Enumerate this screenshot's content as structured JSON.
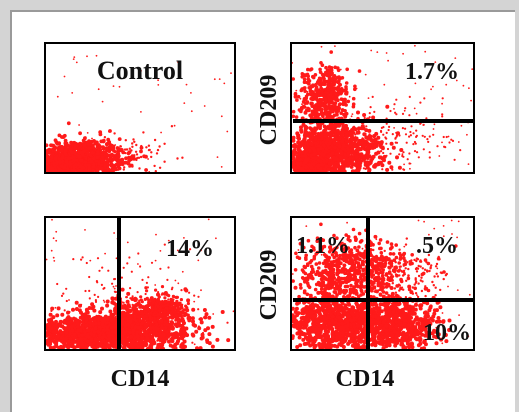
{
  "colors": {
    "events": "#ff1a1a",
    "gate": "#000000",
    "panel_border": "#000000",
    "background": "#ffffff",
    "frame": "#d4d4d4"
  },
  "chart_data": [
    {
      "type": "scatter",
      "panel": "top-left",
      "title": "Control",
      "xlabel": "",
      "ylabel": "",
      "quadrant_gates": false,
      "annotations": [],
      "dominant_population": "low/low (bottom-left)"
    },
    {
      "type": "scatter",
      "panel": "top-right",
      "title": "",
      "xlabel": "",
      "ylabel": "CD209",
      "horizontal_gate": true,
      "vertical_gate": false,
      "annotations": [
        {
          "text": "1.7%",
          "region": "upper-right"
        }
      ],
      "dominant_population": "low CD14, bimodal CD209"
    },
    {
      "type": "scatter",
      "panel": "bottom-left",
      "title": "",
      "xlabel": "CD14",
      "ylabel": "",
      "horizontal_gate": false,
      "vertical_gate": true,
      "annotations": [
        {
          "text": "14%",
          "region": "upper-right"
        }
      ],
      "dominant_population": "broad CD14 spread at low y"
    },
    {
      "type": "scatter",
      "panel": "bottom-right",
      "title": "",
      "xlabel": "CD14",
      "ylabel": "CD209",
      "horizontal_gate": true,
      "vertical_gate": true,
      "annotations": [
        {
          "text": "1.1%",
          "region": "upper-left"
        },
        {
          "text": ".5%",
          "region": "upper-right"
        },
        {
          "text": "10%",
          "region": "lower-right"
        }
      ],
      "dominant_population": "low/low with CD209+ cluster"
    }
  ]
}
